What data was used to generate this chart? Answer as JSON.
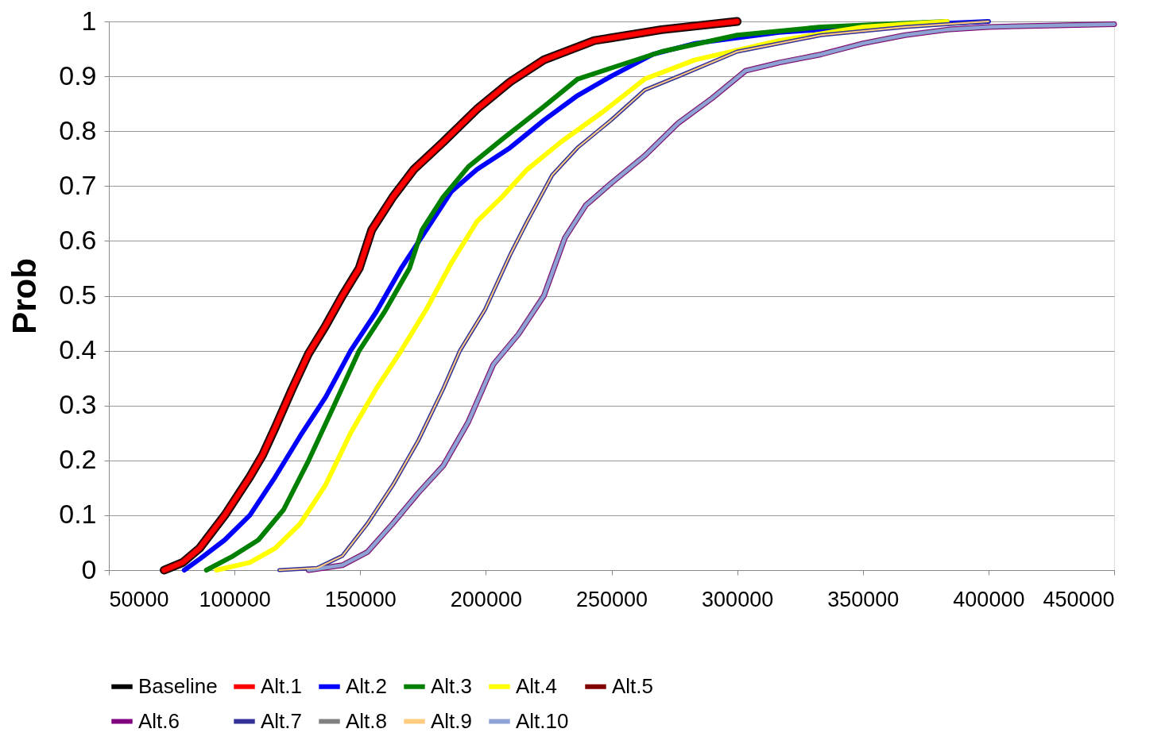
{
  "chart_data": {
    "type": "line",
    "ylabel": "Prob",
    "xlim": [
      50000,
      450000
    ],
    "xticks": [
      50000,
      100000,
      150000,
      200000,
      250000,
      300000,
      350000,
      400000,
      450000
    ],
    "ylim": [
      0,
      1
    ],
    "yticks": [
      0,
      0.1,
      0.2,
      0.3,
      0.4,
      0.5,
      0.6,
      0.7,
      0.8,
      0.9,
      1
    ],
    "grid": "y",
    "legend": "bottom",
    "marker": "none",
    "line_style": "solid",
    "series": [
      {
        "name": "Baseline",
        "color": "#000000",
        "x": [
          72000,
          79400,
          86100,
          96100,
          106100,
          111200,
          116200,
          122900,
          129500,
          136200,
          142900,
          149600,
          154600,
          163000,
          171300,
          183000,
          196400,
          209700,
          223100,
          243100,
          269900,
          300000
        ],
        "values": [
          0,
          0.014,
          0.04,
          0.1,
          0.17,
          0.21,
          0.26,
          0.33,
          0.395,
          0.445,
          0.5,
          0.55,
          0.62,
          0.68,
          0.73,
          0.78,
          0.84,
          0.89,
          0.93,
          0.965,
          0.985,
          1
        ]
      },
      {
        "name": "Alt.1",
        "color": "#ff0000",
        "x": [
          72000,
          79400,
          86100,
          96100,
          106100,
          111200,
          116200,
          122900,
          129500,
          136200,
          142900,
          149600,
          154600,
          163000,
          171300,
          183000,
          196400,
          209700,
          223100,
          243100,
          269900,
          300000
        ],
        "values": [
          0,
          0.014,
          0.04,
          0.1,
          0.17,
          0.21,
          0.26,
          0.33,
          0.395,
          0.445,
          0.5,
          0.55,
          0.62,
          0.68,
          0.73,
          0.78,
          0.84,
          0.89,
          0.93,
          0.965,
          0.985,
          1
        ]
      },
      {
        "name": "Alt.2",
        "color": "#0000ff",
        "x": [
          80000,
          86100,
          96100,
          106100,
          116200,
          126200,
          136200,
          146200,
          156300,
          166300,
          176300,
          186300,
          196400,
          209700,
          223100,
          236500,
          249800,
          266500,
          283300,
          316700,
          350100,
          400000
        ],
        "values": [
          0,
          0.02,
          0.055,
          0.1,
          0.17,
          0.245,
          0.315,
          0.4,
          0.47,
          0.55,
          0.62,
          0.69,
          0.73,
          0.77,
          0.82,
          0.865,
          0.9,
          0.94,
          0.96,
          0.98,
          0.99,
          1
        ]
      },
      {
        "name": "Alt.3",
        "color": "#008000",
        "x": [
          88800,
          99500,
          109500,
          119500,
          129500,
          139600,
          149600,
          159600,
          169600,
          174600,
          183000,
          193000,
          206400,
          223100,
          236500,
          249800,
          269900,
          300000,
          333400,
          383500
        ],
        "values": [
          0,
          0.026,
          0.055,
          0.11,
          0.2,
          0.3,
          0.4,
          0.47,
          0.55,
          0.62,
          0.68,
          0.735,
          0.785,
          0.845,
          0.895,
          0.915,
          0.945,
          0.975,
          0.99,
          1
        ]
      },
      {
        "name": "Alt.4",
        "color": "#ffff00",
        "x": [
          92800,
          106100,
          116200,
          126200,
          136200,
          146200,
          156300,
          166300,
          176300,
          186300,
          196400,
          206400,
          216400,
          229800,
          246500,
          263200,
          283300,
          316700,
          350100,
          383500
        ],
        "values": [
          0,
          0.014,
          0.04,
          0.085,
          0.155,
          0.25,
          0.33,
          0.4,
          0.475,
          0.56,
          0.635,
          0.68,
          0.73,
          0.78,
          0.835,
          0.895,
          0.93,
          0.965,
          0.99,
          1
        ]
      },
      {
        "name": "Alt.5",
        "color": "#800000",
        "x": [
          72000,
          79400,
          86100,
          96100,
          106100,
          111200,
          116200,
          122900,
          129500,
          136200,
          142900,
          149600,
          154600,
          163000,
          171300,
          183000,
          196400,
          209700,
          223100,
          243100,
          269900,
          300000
        ],
        "values": [
          0,
          0.014,
          0.04,
          0.1,
          0.17,
          0.21,
          0.26,
          0.33,
          0.395,
          0.445,
          0.5,
          0.55,
          0.62,
          0.68,
          0.73,
          0.78,
          0.84,
          0.89,
          0.93,
          0.965,
          0.985,
          1
        ]
      },
      {
        "name": "Alt.6",
        "color": "#800080",
        "x": [
          129500,
          142900,
          152900,
          163000,
          173000,
          183000,
          193000,
          203000,
          213000,
          223100,
          231400,
          239800,
          249800,
          263200,
          276600,
          290000,
          303300,
          316700,
          333400,
          350100,
          366800,
          383500,
          400000,
          450000
        ],
        "values": [
          0,
          0.009,
          0.033,
          0.085,
          0.14,
          0.19,
          0.27,
          0.375,
          0.43,
          0.5,
          0.605,
          0.665,
          0.705,
          0.755,
          0.815,
          0.86,
          0.91,
          0.925,
          0.94,
          0.96,
          0.975,
          0.985,
          0.99,
          0.995
        ]
      },
      {
        "name": "Alt.7",
        "color": "#333399",
        "x": [
          117800,
          132900,
          142900,
          152900,
          163000,
          173000,
          183000,
          189700,
          199700,
          209700,
          216400,
          226400,
          236500,
          249800,
          263200,
          276600,
          300000,
          333400,
          366800,
          400000
        ],
        "values": [
          0,
          0.004,
          0.026,
          0.085,
          0.155,
          0.235,
          0.33,
          0.4,
          0.475,
          0.575,
          0.635,
          0.72,
          0.77,
          0.82,
          0.875,
          0.9,
          0.945,
          0.975,
          0.99,
          1
        ]
      },
      {
        "name": "Alt.8",
        "color": "#808080",
        "x": [
          129500,
          142900,
          152900,
          163000,
          173000,
          183000,
          193000,
          203000,
          213000,
          223100,
          231400,
          239800,
          249800,
          263200,
          276600,
          290000,
          303300,
          316700,
          333400,
          350100,
          366800,
          383500,
          400000,
          450000
        ],
        "values": [
          0,
          0.009,
          0.033,
          0.085,
          0.14,
          0.19,
          0.27,
          0.375,
          0.43,
          0.5,
          0.605,
          0.665,
          0.705,
          0.755,
          0.815,
          0.86,
          0.91,
          0.925,
          0.94,
          0.96,
          0.975,
          0.985,
          0.99,
          0.995
        ]
      },
      {
        "name": "Alt.9",
        "color": "#ffcc80",
        "x": [
          117800,
          132900,
          142900,
          152900,
          163000,
          173000,
          183000,
          189700,
          199700,
          209700,
          216400,
          226400,
          236500,
          249800,
          263200,
          276600,
          300000,
          333400,
          366800,
          400000
        ],
        "values": [
          0,
          0.004,
          0.026,
          0.085,
          0.155,
          0.235,
          0.33,
          0.4,
          0.475,
          0.575,
          0.635,
          0.72,
          0.77,
          0.82,
          0.875,
          0.9,
          0.945,
          0.975,
          0.99,
          1
        ]
      },
      {
        "name": "Alt.10",
        "color": "#8ea2d8",
        "x": [
          129500,
          142900,
          152900,
          163000,
          173000,
          183000,
          193000,
          203000,
          213000,
          223100,
          231400,
          239800,
          249800,
          263200,
          276600,
          290000,
          303300,
          316700,
          333400,
          350100,
          366800,
          383500,
          400000,
          450000
        ],
        "values": [
          0,
          0.009,
          0.033,
          0.085,
          0.14,
          0.19,
          0.27,
          0.375,
          0.43,
          0.5,
          0.605,
          0.665,
          0.705,
          0.755,
          0.815,
          0.86,
          0.91,
          0.925,
          0.94,
          0.96,
          0.975,
          0.985,
          0.99,
          0.995
        ]
      }
    ]
  }
}
